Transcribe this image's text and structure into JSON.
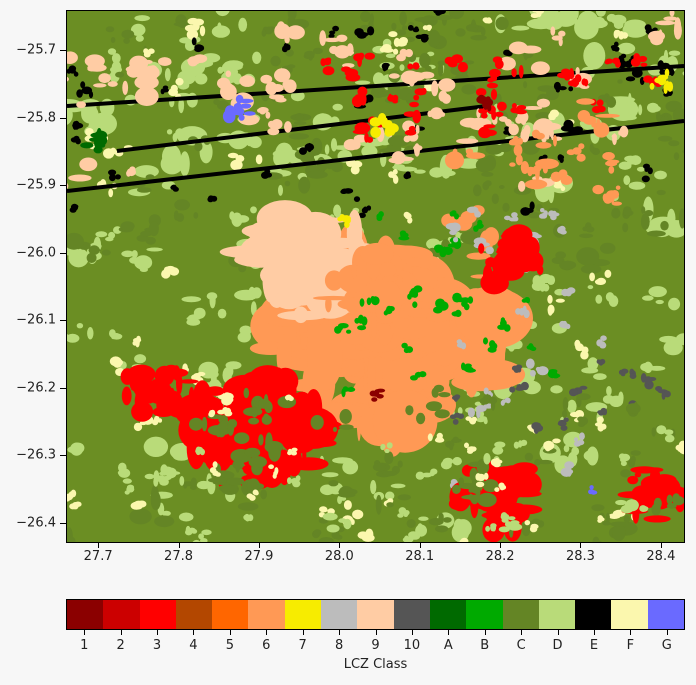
{
  "map": {
    "y_ticks": [
      "−25.7",
      "−25.8",
      "−25.9",
      "−26.0",
      "−26.1",
      "−26.2",
      "−26.3",
      "−26.4"
    ],
    "y_tick_values": [
      -25.7,
      -25.8,
      -25.9,
      -26.0,
      -26.1,
      -26.2,
      -26.3,
      -26.4
    ],
    "x_ticks": [
      "27.7",
      "27.8",
      "27.9",
      "28.0",
      "28.1",
      "28.2",
      "28.3",
      "28.4"
    ],
    "x_tick_values": [
      27.7,
      27.8,
      27.9,
      28.0,
      28.1,
      28.2,
      28.3,
      28.4
    ],
    "xlim": [
      27.66,
      28.43
    ],
    "ylim": [
      -26.43,
      -25.64
    ]
  },
  "colorbar": {
    "title": "LCZ Class",
    "classes": [
      {
        "label": "1",
        "color": "#8b0000"
      },
      {
        "label": "2",
        "color": "#cc0000"
      },
      {
        "label": "3",
        "color": "#ff0000"
      },
      {
        "label": "4",
        "color": "#b34700"
      },
      {
        "label": "5",
        "color": "#ff6600"
      },
      {
        "label": "6",
        "color": "#ff9955"
      },
      {
        "label": "7",
        "color": "#f7ec00"
      },
      {
        "label": "8",
        "color": "#bcbcbc"
      },
      {
        "label": "9",
        "color": "#ffcca4"
      },
      {
        "label": "10",
        "color": "#555555"
      },
      {
        "label": "A",
        "color": "#006a00"
      },
      {
        "label": "B",
        "color": "#00aa00"
      },
      {
        "label": "C",
        "color": "#648525"
      },
      {
        "label": "D",
        "color": "#b9db79"
      },
      {
        "label": "E",
        "color": "#000000"
      },
      {
        "label": "F",
        "color": "#fbf7ae"
      },
      {
        "label": "G",
        "color": "#6a6aff"
      }
    ]
  }
}
